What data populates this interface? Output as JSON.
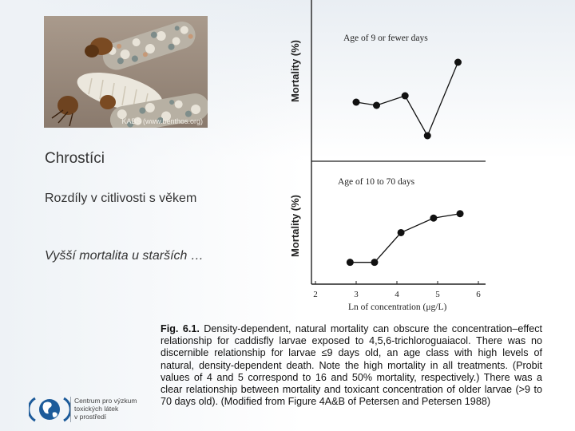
{
  "photo": {
    "caption": "KABS (www.benthos.org)"
  },
  "slide": {
    "title": "Chrostíci",
    "subtitle": "Rozdíly v citlivosti s věkem",
    "note": "Vyšší mortalita u starších …"
  },
  "figure": {
    "caption_label": "Fig. 6.1.",
    "caption_text": "Density-dependent, natural mortality can obscure the concentration–effect relationship for caddisfly larvae exposed to 4,5,6-trichloroguaiacol. There was no discernible relationship for larvae ≤9 days old, an age class with high levels of natural, density-dependent death. Note the high mortality in all treatments. (Probit values of 4 and 5 correspond to 16 and 50% mortality, respectively.) There was a clear relationship between mortality and toxicant concentration of older larvae (>9 to 70 days old). (Modified from Figure 4A&B of Petersen and Petersen 1988)"
  },
  "logo": {
    "line1": "Centrum pro výzkum",
    "line2": "toxických látek",
    "line3": "v prostředí"
  },
  "chart_data": [
    {
      "type": "line",
      "title": "Age of 9 or fewer days",
      "ylabel": "Mortality (%)",
      "xlabel": "Ln of concentration (μg/L)",
      "x": [
        3,
        3.5,
        4.2,
        4.75,
        5.5
      ],
      "y": [
        0.62,
        0.58,
        0.7,
        0.2,
        1.12
      ],
      "ylim": [
        0,
        1.3
      ],
      "xlim": [
        2,
        6
      ]
    },
    {
      "type": "line",
      "title": "Age of 10 to 70 days",
      "ylabel": "Mortality (%)",
      "xlabel": "Ln of concentration (μg/L)",
      "x": [
        2.85,
        3.45,
        4.1,
        4.9,
        5.55
      ],
      "y": [
        0.08,
        0.08,
        0.55,
        0.78,
        0.85
      ],
      "ticks_x": [
        "2",
        "3",
        "4",
        "5",
        "6"
      ],
      "ylim": [
        0,
        1.2
      ],
      "xlim": [
        2,
        6
      ]
    }
  ]
}
